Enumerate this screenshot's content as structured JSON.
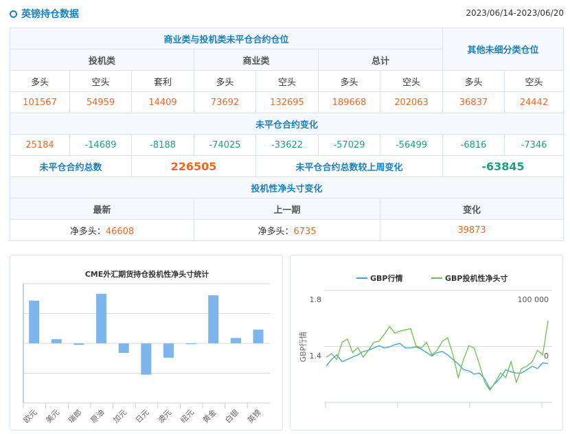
{
  "header": {
    "title": "英镑持仓数据",
    "date_range": "2023/06/14-2023/06/20"
  },
  "table": {
    "group1": "商业类与投机类未平仓合约仓位",
    "group2": "其他未细分类仓位",
    "sub": [
      "投机类",
      "商业类",
      "总计"
    ],
    "cols": [
      "多头",
      "空头",
      "套利",
      "多头",
      "空头",
      "多头",
      "空头",
      "多头",
      "空头"
    ],
    "values": [
      "101567",
      "54959",
      "14409",
      "73692",
      "132695",
      "189668",
      "202063",
      "36837",
      "24442"
    ],
    "change_title": "未平仓合约变化",
    "changes": [
      "25184",
      "-14689",
      "-8188",
      "-74025",
      "-33622",
      "-57029",
      "-56499",
      "-6816",
      "-7346"
    ],
    "total_label": "未平仓合约总数",
    "total_value": "226505",
    "total_change_label": "未平仓合约总数较上周变化",
    "total_change_value": "-63845",
    "net_title": "投机性净头寸变化",
    "net_heads": [
      "最新",
      "上一期",
      "变化"
    ],
    "net_prefix": "净多头：",
    "net_latest": "46608",
    "net_prev": "6735",
    "net_change": "39873"
  },
  "chart_data": [
    {
      "type": "bar",
      "title": "CME外汇期货持仓投机性净头寸统计",
      "categories": [
        "欧元",
        "美元",
        "瑞郎",
        "原油",
        "加元",
        "日元",
        "澳元",
        "纽元",
        "黄金",
        "白银",
        "英镑"
      ],
      "values": [
        1.43,
        0.14,
        -0.05,
        1.66,
        -0.32,
        -1.05,
        -0.48,
        0,
        1.61,
        0.18,
        0.46
      ],
      "ylim": [
        -2,
        2
      ],
      "grid": true,
      "color": "#7eb6ec"
    },
    {
      "type": "line",
      "legend": [
        "GBP行情",
        "GBP投机性净头寸"
      ],
      "ylabel": "GBP行情",
      "left_ticks": [
        "1.8",
        "1.4"
      ],
      "right_ticks": [
        "100 000",
        "0"
      ],
      "ylim_left": [
        1.0,
        1.8
      ],
      "ylim_right": [
        -100000,
        100000
      ],
      "series": [
        {
          "name": "GBP行情",
          "axis": "left",
          "color": "#3aa0d8",
          "values": [
            1.259,
            1.307,
            1.34,
            1.291,
            1.307,
            1.324,
            1.34,
            1.364,
            1.372,
            1.389,
            1.405,
            1.389,
            1.397,
            1.413,
            1.421,
            1.389,
            1.389,
            1.397,
            1.38,
            1.356,
            1.332,
            1.356,
            1.364,
            1.34,
            1.307,
            1.275,
            1.234,
            1.226,
            1.202,
            1.21,
            1.169,
            1.096,
            1.137,
            1.177,
            1.234,
            1.218,
            1.21,
            1.21,
            1.234,
            1.259,
            1.242,
            1.283,
            1.278
          ]
        },
        {
          "name": "GBP投机性净头寸",
          "axis": "right",
          "color": "#6cc04a",
          "values": [
            -19106,
            -13008,
            -23171,
            7317,
            13415,
            -10976,
            -2033,
            -19106,
            -6911,
            7317,
            9350,
            21545,
            35772,
            23577,
            27642,
            29675,
            31707,
            1220,
            -2846,
            7317,
            -15041,
            -6911,
            9350,
            15447,
            -15041,
            -55691,
            -23171,
            1220,
            -2846,
            -31301,
            -63821,
            -78049,
            -63821,
            -47561,
            -55691,
            -27236,
            -63821,
            -39431,
            -35366,
            -27236,
            -6911,
            -15041,
            45935
          ]
        }
      ]
    }
  ]
}
